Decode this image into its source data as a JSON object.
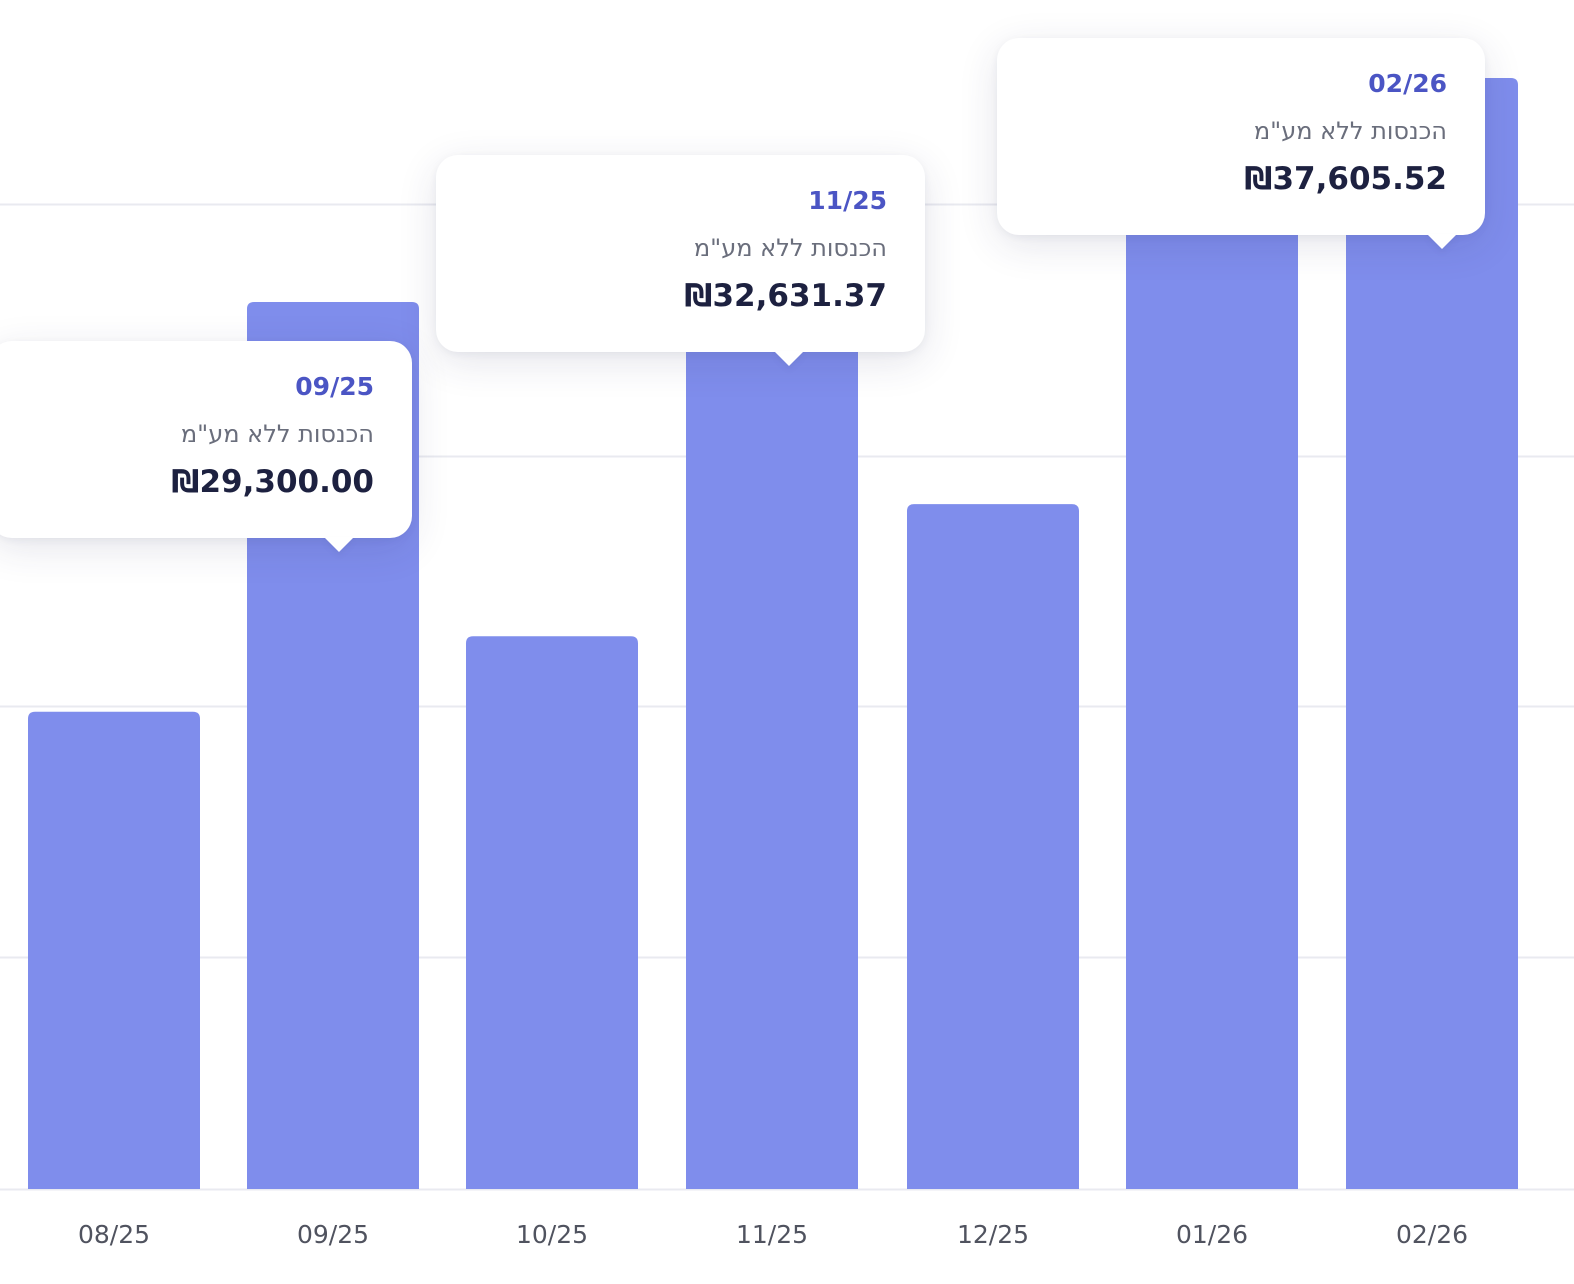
{
  "colors": {
    "bar": "#7f8dec",
    "grid": "#e9eaf0",
    "axis_text": "#50535f",
    "tooltip_date": "#4b55c4",
    "tooltip_label": "#6a6e7c",
    "tooltip_value": "#1d2140"
  },
  "chart_data": {
    "type": "bar",
    "title": "",
    "xlabel": "",
    "ylabel": "",
    "categories": [
      "08/25",
      "09/25",
      "10/25",
      "11/25",
      "12/25",
      "01/26",
      "02/26"
    ],
    "values": [
      14100,
      29300,
      16900,
      32631.37,
      21800,
      32350,
      37605.52
    ],
    "ylim": [
      -3600,
      40500
    ],
    "grid": true,
    "gridlines": [
      5000,
      14300,
      23600,
      32950
    ],
    "legend": "none"
  },
  "tooltips": [
    {
      "date": "09/25",
      "label": "הכנסות ללא מע\"מ",
      "value": "₪29,300.00"
    },
    {
      "date": "11/25",
      "label": "הכנסות ללא מע\"מ",
      "value": "₪32,631.37"
    },
    {
      "date": "02/26",
      "label": "הכנסות ללא מע\"מ",
      "value": "₪37,605.52"
    }
  ]
}
